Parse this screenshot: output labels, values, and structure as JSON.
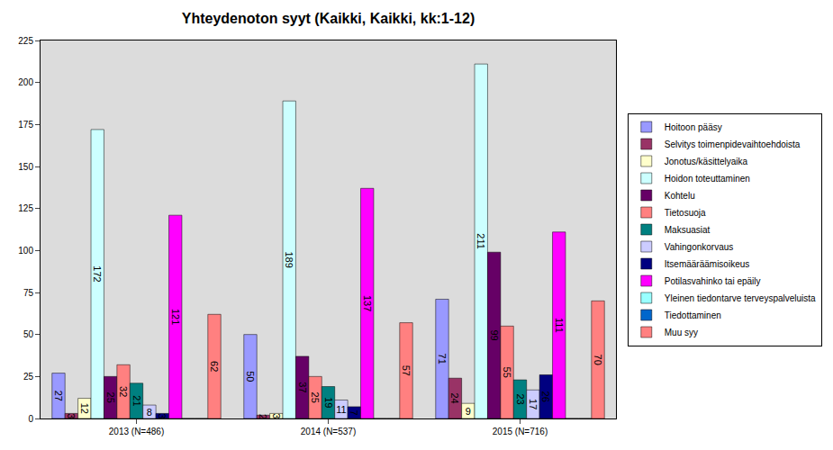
{
  "chart_data": {
    "type": "bar",
    "title": "Yhteydenoton syyt (Kaikki, Kaikki, kk:1-12)",
    "categories": [
      "2013 (N=486)",
      "2014 (N=537)",
      "2015 (N=716)"
    ],
    "series": [
      {
        "name": "Hoitoon pääsy",
        "color": "#9999FF",
        "values": [
          27,
          50,
          71
        ]
      },
      {
        "name": "Selvitys toimenpidevaihtoehdoista",
        "color": "#993366",
        "values": [
          3,
          2,
          24
        ]
      },
      {
        "name": "Jonotus/käsittelyaika",
        "color": "#FFFFCC",
        "values": [
          12,
          3,
          9
        ]
      },
      {
        "name": "Hoidon toteuttaminen",
        "color": "#CCFFFF",
        "values": [
          172,
          189,
          211
        ]
      },
      {
        "name": "Kohtelu",
        "color": "#660066",
        "values": [
          25,
          37,
          99
        ]
      },
      {
        "name": "Tietosuoja",
        "color": "#FF8080",
        "values": [
          32,
          25,
          55
        ]
      },
      {
        "name": "Maksuasiat",
        "color": "#008080",
        "values": [
          21,
          19,
          23
        ]
      },
      {
        "name": "Vahingonkorvaus",
        "color": "#CCCCFF",
        "values": [
          8,
          11,
          17
        ]
      },
      {
        "name": "Itsemääräämisoikeus",
        "color": "#000080",
        "values": [
          3,
          7,
          26
        ]
      },
      {
        "name": "Potilasvahinko tai epäily",
        "color": "#FF00FF",
        "values": [
          121,
          137,
          111
        ]
      },
      {
        "name": "Yleinen tiedontarve terveyspalveluista",
        "color": "#99FFFF",
        "values": [
          0,
          0,
          0
        ]
      },
      {
        "name": "Tiedottaminen",
        "color": "#0066CC",
        "values": [
          0,
          0,
          0
        ]
      },
      {
        "name": "Muu syy",
        "color": "#FF8080",
        "values": [
          62,
          57,
          70
        ]
      }
    ],
    "ylim": [
      0,
      225
    ],
    "yticks": [
      0,
      25,
      50,
      75,
      100,
      125,
      150,
      175,
      200,
      225
    ],
    "grid": false,
    "legend": "right",
    "data_labels": true
  }
}
